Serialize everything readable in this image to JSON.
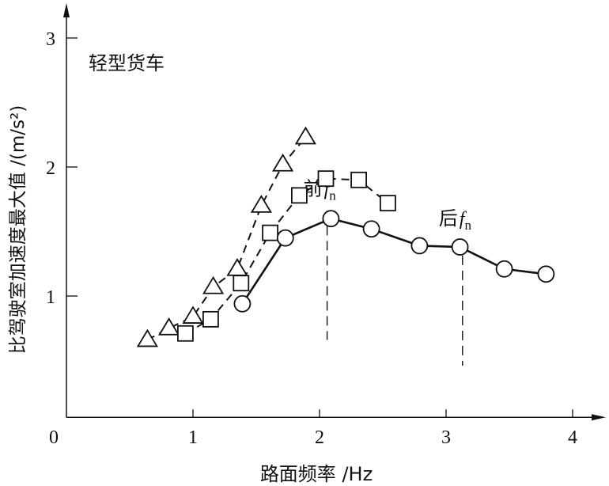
{
  "chart_data": {
    "type": "line",
    "title": "",
    "annotation_vehicle": "轻型货车",
    "xlabel": "路面频率 /Hz",
    "ylabel": "比驾驶室加速度最大值 /(m/s²)",
    "xlim": [
      0,
      4.3
    ],
    "ylim": [
      0.06,
      3.25
    ],
    "x_ticks": [
      "0",
      "1",
      "2",
      "3",
      "4"
    ],
    "y_ticks": [
      "1",
      "2",
      "3"
    ],
    "grid": false,
    "series": [
      {
        "marker": "triangle",
        "line": "dashed",
        "x": [
          0.64,
          0.81,
          1.0,
          1.16,
          1.35,
          1.54,
          1.71,
          1.89
        ],
        "y": [
          0.66,
          0.75,
          0.84,
          1.07,
          1.21,
          1.7,
          2.02,
          2.23
        ]
      },
      {
        "marker": "square",
        "line": "dashed",
        "x": [
          0.94,
          1.14,
          1.38,
          1.61,
          1.84,
          2.05,
          2.31,
          2.54
        ],
        "y": [
          0.71,
          0.82,
          1.1,
          1.49,
          1.78,
          1.91,
          1.9,
          1.72
        ]
      },
      {
        "marker": "circle",
        "line": "solid",
        "x": [
          1.39,
          1.73,
          2.09,
          2.41,
          2.79,
          3.11,
          3.46,
          3.79
        ],
        "y": [
          0.94,
          1.45,
          1.6,
          1.52,
          1.39,
          1.38,
          1.21,
          1.17
        ]
      }
    ],
    "reference_lines": [
      {
        "label_prefix": "前",
        "label_symbol": "f",
        "label_sub": "n",
        "x": 2.06,
        "y_range": [
          0.66,
          1.66
        ]
      },
      {
        "label_prefix": "后",
        "label_symbol": "f",
        "label_sub": "n",
        "x": 3.13,
        "y_range": [
          0.46,
          1.43
        ]
      }
    ]
  }
}
